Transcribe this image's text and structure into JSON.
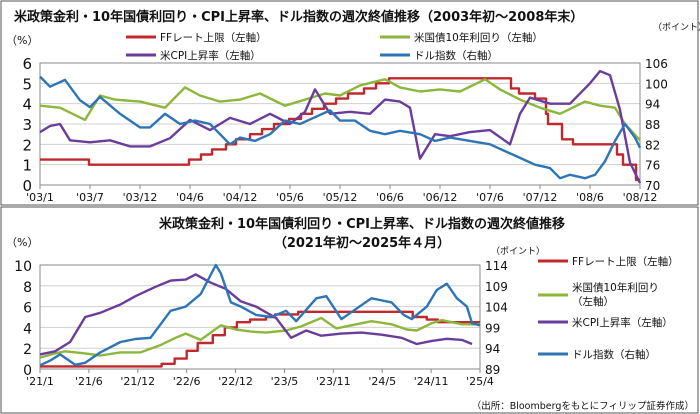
{
  "source_note": "（出所：Bloombergをもとにフィリップ証券作成）",
  "colors": {
    "ff": "#c0282d",
    "ust": "#8cb63c",
    "cpi": "#6a3d9a",
    "dxy": "#2e75b6",
    "grid": "#d0d0d0",
    "border": "#555555"
  },
  "chart_data": [
    {
      "type": "line",
      "title": "米政策金利・10年国債利回り・CPI上昇率、ドル指数の週次終値推移（2003年初～2008年末）",
      "ylabel_left": "（%）",
      "ylabel_right": "（ポイント）",
      "x_ticks": [
        "'03/1",
        "'03/7",
        "'03/12",
        "'04/6",
        "'04/12",
        "'05/6",
        "'05/12",
        "'06/6",
        "'06/12",
        "'07/6",
        "'07/12",
        "'08/6",
        "'08/12"
      ],
      "x_range": [
        2003.0,
        2009.0
      ],
      "ylim_left": [
        0,
        6
      ],
      "y_ticks_left": [
        "0",
        "1",
        "2",
        "3",
        "4",
        "5",
        "6"
      ],
      "ylim_right": [
        70,
        106
      ],
      "y_ticks_right": [
        "70",
        "76",
        "82",
        "88",
        "94",
        "100",
        "106"
      ],
      "series": [
        {
          "name": "FFレート上限（左軸）",
          "key": "ff",
          "axis": "left",
          "x": [
            2003.0,
            2003.49,
            2003.49,
            2004.49,
            2004.49,
            2004.61,
            2004.61,
            2004.72,
            2004.72,
            2004.86,
            2004.86,
            2004.96,
            2004.96,
            2005.1,
            2005.1,
            2005.22,
            2005.22,
            2005.34,
            2005.34,
            2005.49,
            2005.49,
            2005.61,
            2005.61,
            2005.72,
            2005.72,
            2005.84,
            2005.84,
            2005.96,
            2005.96,
            2006.08,
            2006.08,
            2006.24,
            2006.24,
            2006.36,
            2006.36,
            2006.49,
            2006.49,
            2007.71,
            2007.71,
            2007.79,
            2007.79,
            2007.95,
            2007.95,
            2008.06,
            2008.06,
            2008.08,
            2008.08,
            2008.22,
            2008.22,
            2008.33,
            2008.33,
            2008.77,
            2008.77,
            2008.83,
            2008.83,
            2008.96,
            2008.96,
            2009.0
          ],
          "y": [
            1.25,
            1.25,
            1.0,
            1.0,
            1.25,
            1.25,
            1.5,
            1.5,
            1.75,
            1.75,
            2.0,
            2.0,
            2.25,
            2.25,
            2.5,
            2.5,
            2.75,
            2.75,
            3.0,
            3.0,
            3.25,
            3.25,
            3.5,
            3.5,
            3.75,
            3.75,
            4.0,
            4.0,
            4.25,
            4.25,
            4.5,
            4.5,
            4.75,
            4.75,
            5.0,
            5.0,
            5.25,
            5.25,
            4.75,
            4.75,
            4.5,
            4.5,
            4.25,
            4.25,
            3.5,
            3.5,
            3.0,
            3.0,
            2.25,
            2.25,
            2.0,
            2.0,
            1.5,
            1.5,
            1.0,
            1.0,
            0.25,
            0.25
          ]
        },
        {
          "name": "米国債10年利回り（左軸）",
          "key": "ust",
          "axis": "left",
          "x": [
            2003.0,
            2003.2,
            2003.45,
            2003.6,
            2003.75,
            2004.0,
            2004.25,
            2004.45,
            2004.6,
            2004.8,
            2005.0,
            2005.2,
            2005.45,
            2005.65,
            2005.85,
            2006.0,
            2006.2,
            2006.45,
            2006.6,
            2006.8,
            2007.0,
            2007.2,
            2007.45,
            2007.6,
            2007.8,
            2008.0,
            2008.2,
            2008.45,
            2008.6,
            2008.75,
            2008.85,
            2009.0
          ],
          "y": [
            3.9,
            3.8,
            3.2,
            4.4,
            4.2,
            4.1,
            3.8,
            4.8,
            4.4,
            4.1,
            4.2,
            4.5,
            3.9,
            4.2,
            4.5,
            4.4,
            4.9,
            5.2,
            4.8,
            4.6,
            4.7,
            4.6,
            5.2,
            4.7,
            4.2,
            3.8,
            3.5,
            4.1,
            3.9,
            3.8,
            3.0,
            2.2
          ]
        },
        {
          "name": "米CPI上昇率（左軸）",
          "key": "cpi",
          "axis": "left",
          "x": [
            2003.0,
            2003.1,
            2003.2,
            2003.3,
            2003.5,
            2003.7,
            2003.9,
            2004.1,
            2004.3,
            2004.5,
            2004.7,
            2004.9,
            2005.1,
            2005.3,
            2005.5,
            2005.65,
            2005.75,
            2005.9,
            2006.1,
            2006.3,
            2006.45,
            2006.6,
            2006.7,
            2006.8,
            2006.95,
            2007.1,
            2007.3,
            2007.5,
            2007.7,
            2007.8,
            2007.9,
            2008.1,
            2008.3,
            2008.5,
            2008.6,
            2008.7,
            2008.8,
            2008.9,
            2009.0
          ],
          "y": [
            2.6,
            2.9,
            3.0,
            2.2,
            2.1,
            2.2,
            1.9,
            1.9,
            2.3,
            3.2,
            2.7,
            3.3,
            3.0,
            3.5,
            3.0,
            3.6,
            4.7,
            3.5,
            3.6,
            3.5,
            4.2,
            4.1,
            3.8,
            1.3,
            2.5,
            2.4,
            2.6,
            2.7,
            2.0,
            3.5,
            4.3,
            4.0,
            4.0,
            5.0,
            5.6,
            5.4,
            3.7,
            1.1,
            0.1
          ]
        },
        {
          "name": "ドル指数（右軸）",
          "key": "dxy",
          "axis": "right",
          "x": [
            2003.0,
            2003.1,
            2003.25,
            2003.4,
            2003.5,
            2003.6,
            2003.8,
            2004.0,
            2004.1,
            2004.25,
            2004.4,
            2004.55,
            2004.7,
            2004.9,
            2005.0,
            2005.15,
            2005.3,
            2005.45,
            2005.6,
            2005.75,
            2005.9,
            2006.0,
            2006.15,
            2006.3,
            2006.45,
            2006.6,
            2006.8,
            2006.95,
            2007.1,
            2007.3,
            2007.5,
            2007.65,
            2007.8,
            2007.95,
            2008.1,
            2008.2,
            2008.3,
            2008.45,
            2008.55,
            2008.65,
            2008.75,
            2008.85,
            2008.95,
            2009.0
          ],
          "y": [
            102,
            99,
            101,
            95,
            93,
            96,
            91,
            87,
            87,
            91,
            88,
            89,
            88,
            82,
            84,
            83,
            85,
            89,
            88,
            90,
            92,
            89,
            89,
            86,
            85,
            86,
            85,
            83,
            84,
            83,
            82,
            80,
            78,
            76,
            75,
            72,
            73,
            72,
            73,
            77,
            83,
            88,
            84,
            81
          ]
        }
      ]
    },
    {
      "type": "line",
      "title": "米政策金利・10年国債利回り・CPI上昇率、ドル指数の週次終値推移",
      "subtitle": "（2021年初～2025年４月）",
      "ylabel_left": "（%）",
      "ylabel_right": "（ポイント）",
      "x_ticks": [
        "'21/1",
        "'21/6",
        "'21/12",
        "'22/6",
        "'22/12",
        "'23/5",
        "'23/11",
        "'24/5",
        "'24/11",
        "'25/4"
      ],
      "x_range": [
        2021.0,
        2025.38
      ],
      "ylim_left": [
        0,
        10
      ],
      "y_ticks_left": [
        "0",
        "2",
        "4",
        "6",
        "8",
        "10"
      ],
      "ylim_right": [
        89,
        114
      ],
      "y_ticks_right": [
        "89",
        "94",
        "99",
        "104",
        "109",
        "114"
      ],
      "series": [
        {
          "name": "FFレート上限（左軸）",
          "key": "ff",
          "axis": "left",
          "x": [
            2021.0,
            2022.21,
            2022.21,
            2022.34,
            2022.34,
            2022.46,
            2022.46,
            2022.57,
            2022.57,
            2022.72,
            2022.72,
            2022.84,
            2022.84,
            2022.96,
            2022.96,
            2023.09,
            2023.09,
            2023.25,
            2023.25,
            2023.34,
            2023.34,
            2023.57,
            2023.57,
            2024.71,
            2024.71,
            2024.85,
            2024.85,
            2024.96,
            2024.96,
            2025.38
          ],
          "y": [
            0.25,
            0.25,
            0.5,
            0.5,
            1.0,
            1.0,
            1.75,
            1.75,
            2.5,
            2.5,
            3.25,
            3.25,
            4.0,
            4.0,
            4.5,
            4.5,
            4.75,
            4.75,
            5.0,
            5.0,
            5.25,
            5.25,
            5.5,
            5.5,
            5.0,
            5.0,
            4.75,
            4.75,
            4.5,
            4.5
          ]
        },
        {
          "name": "米国債10年利回り（左軸）",
          "key": "ust",
          "axis": "left",
          "x": [
            2021.0,
            2021.15,
            2021.25,
            2021.45,
            2021.6,
            2021.8,
            2022.0,
            2022.2,
            2022.35,
            2022.45,
            2022.6,
            2022.8,
            2022.95,
            2023.1,
            2023.25,
            2023.45,
            2023.6,
            2023.8,
            2023.95,
            2024.1,
            2024.3,
            2024.5,
            2024.65,
            2024.75,
            2024.9,
            2025.0,
            2025.2,
            2025.38
          ],
          "y": [
            1.1,
            1.5,
            1.7,
            1.5,
            1.3,
            1.6,
            1.6,
            2.3,
            3.0,
            3.4,
            2.8,
            4.2,
            3.8,
            3.6,
            3.5,
            3.7,
            4.1,
            4.9,
            3.9,
            4.2,
            4.6,
            4.3,
            3.8,
            3.7,
            4.4,
            4.7,
            4.3,
            4.3
          ]
        },
        {
          "name": "米CPI上昇率（左軸）",
          "key": "cpi",
          "axis": "left",
          "x": [
            2021.0,
            2021.15,
            2021.3,
            2021.45,
            2021.6,
            2021.8,
            2021.95,
            2022.15,
            2022.3,
            2022.45,
            2022.55,
            2022.7,
            2022.85,
            2023.0,
            2023.15,
            2023.35,
            2023.5,
            2023.65,
            2023.8,
            2024.0,
            2024.2,
            2024.4,
            2024.6,
            2024.75,
            2024.9,
            2025.05,
            2025.2,
            2025.3
          ],
          "y": [
            1.4,
            1.7,
            2.6,
            5.0,
            5.4,
            6.2,
            7.0,
            7.9,
            8.5,
            8.6,
            9.1,
            8.3,
            7.7,
            6.5,
            6.0,
            4.9,
            3.0,
            3.7,
            3.2,
            3.4,
            3.5,
            3.3,
            3.0,
            2.4,
            2.7,
            2.9,
            2.8,
            2.4
          ]
        },
        {
          "name": "ドル指数（右軸）",
          "key": "dxy",
          "axis": "right",
          "x": [
            2021.0,
            2021.1,
            2021.2,
            2021.35,
            2021.45,
            2021.6,
            2021.8,
            2021.95,
            2022.1,
            2022.3,
            2022.45,
            2022.6,
            2022.75,
            2022.8,
            2022.9,
            2023.0,
            2023.15,
            2023.3,
            2023.45,
            2023.55,
            2023.75,
            2023.85,
            2024.0,
            2024.15,
            2024.3,
            2024.5,
            2024.62,
            2024.7,
            2024.85,
            2024.95,
            2025.05,
            2025.15,
            2025.25,
            2025.3,
            2025.38
          ],
          "y": [
            89.9,
            91,
            92.5,
            90,
            90.5,
            93,
            95.5,
            96.2,
            96.5,
            103,
            104,
            107,
            114,
            112,
            105,
            104,
            102,
            101.5,
            103,
            100.5,
            106,
            106.5,
            101,
            103.5,
            106,
            105,
            102,
            101,
            104,
            108,
            109.5,
            106,
            104,
            100,
            99.5
          ]
        }
      ]
    }
  ],
  "legend_top": [
    {
      "key": "ff",
      "label": "FFレート上限（左軸）"
    },
    {
      "key": "ust",
      "label": "米国債10年利回り（左軸）"
    },
    {
      "key": "cpi",
      "label": "米CPI上昇率（左軸）"
    },
    {
      "key": "dxy",
      "label": "ドル指数（右軸）"
    }
  ],
  "legend_bottom": [
    {
      "key": "ff",
      "lines": [
        "FFレート上限（左軸）"
      ]
    },
    {
      "key": "ust",
      "lines": [
        "米国債10年利回り",
        "（左軸）"
      ]
    },
    {
      "key": "cpi",
      "lines": [
        "米CPI上昇率（左軸）"
      ]
    },
    {
      "key": "dxy",
      "lines": [
        "ドル指数（右軸）"
      ]
    }
  ]
}
